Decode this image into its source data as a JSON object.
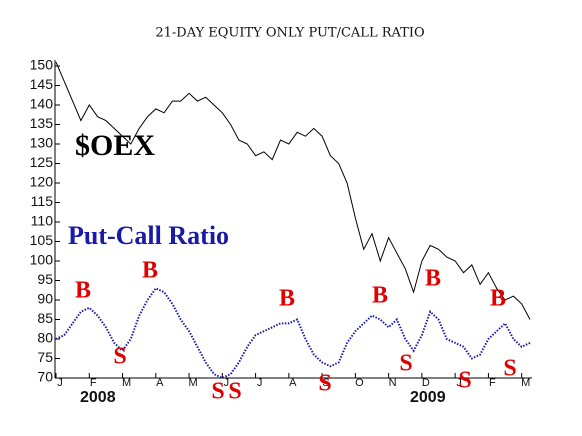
{
  "chart_data": {
    "type": "line",
    "title": "21-DAY EQUITY ONLY PUT/CALL RATIO",
    "categories": [
      "J",
      null,
      null,
      null,
      "F",
      null,
      null,
      null,
      "M",
      null,
      null,
      null,
      "A",
      null,
      null,
      null,
      "M",
      null,
      null,
      null,
      "J",
      null,
      null,
      null,
      "J",
      null,
      null,
      null,
      "A",
      null,
      null,
      null,
      "S",
      null,
      null,
      null,
      "O",
      null,
      null,
      null,
      "N",
      null,
      null,
      null,
      "D",
      null,
      null,
      null,
      "J",
      null,
      null,
      null,
      "F",
      null,
      null,
      null,
      "M",
      null
    ],
    "years": [
      "2008",
      "2009"
    ],
    "series": [
      {
        "name": "$OEX",
        "color": "#000000",
        "values": [
          151,
          146,
          141,
          136,
          140,
          137,
          136,
          134,
          132,
          130,
          134,
          137,
          139,
          138,
          141,
          141,
          143,
          141,
          142,
          140,
          138,
          135,
          131,
          130,
          127,
          128,
          126,
          131,
          130,
          133,
          132,
          134,
          132,
          127,
          125,
          120,
          111,
          103,
          107,
          100,
          106,
          102,
          98,
          92,
          100,
          104,
          103,
          101,
          100,
          97,
          99,
          94,
          97,
          93,
          90,
          91,
          89,
          85
        ]
      },
      {
        "name": "Put-Call Ratio",
        "color": "#1a1aa8",
        "values": [
          80,
          81,
          84,
          87,
          88,
          86,
          83,
          79,
          77,
          80,
          86,
          90,
          93,
          92,
          89,
          85,
          82,
          78,
          74,
          71,
          70,
          71,
          74,
          78,
          81,
          82,
          83,
          84,
          84,
          85,
          80,
          76,
          74,
          73,
          74,
          79,
          82,
          84,
          86,
          85,
          83,
          85,
          80,
          77,
          81,
          87,
          85,
          80,
          79,
          78,
          75,
          76,
          80,
          82,
          84,
          80,
          78,
          79
        ]
      }
    ],
    "signals": [
      "B",
      "S",
      "B",
      "S",
      "S",
      "B",
      "S",
      "B",
      "S",
      "B",
      "S",
      "B",
      "S"
    ],
    "ylim": [
      70,
      150
    ],
    "yticks": [
      70,
      75,
      80,
      85,
      90,
      95,
      100,
      105,
      110,
      115,
      120,
      125,
      130,
      135,
      140,
      145,
      150
    ]
  }
}
